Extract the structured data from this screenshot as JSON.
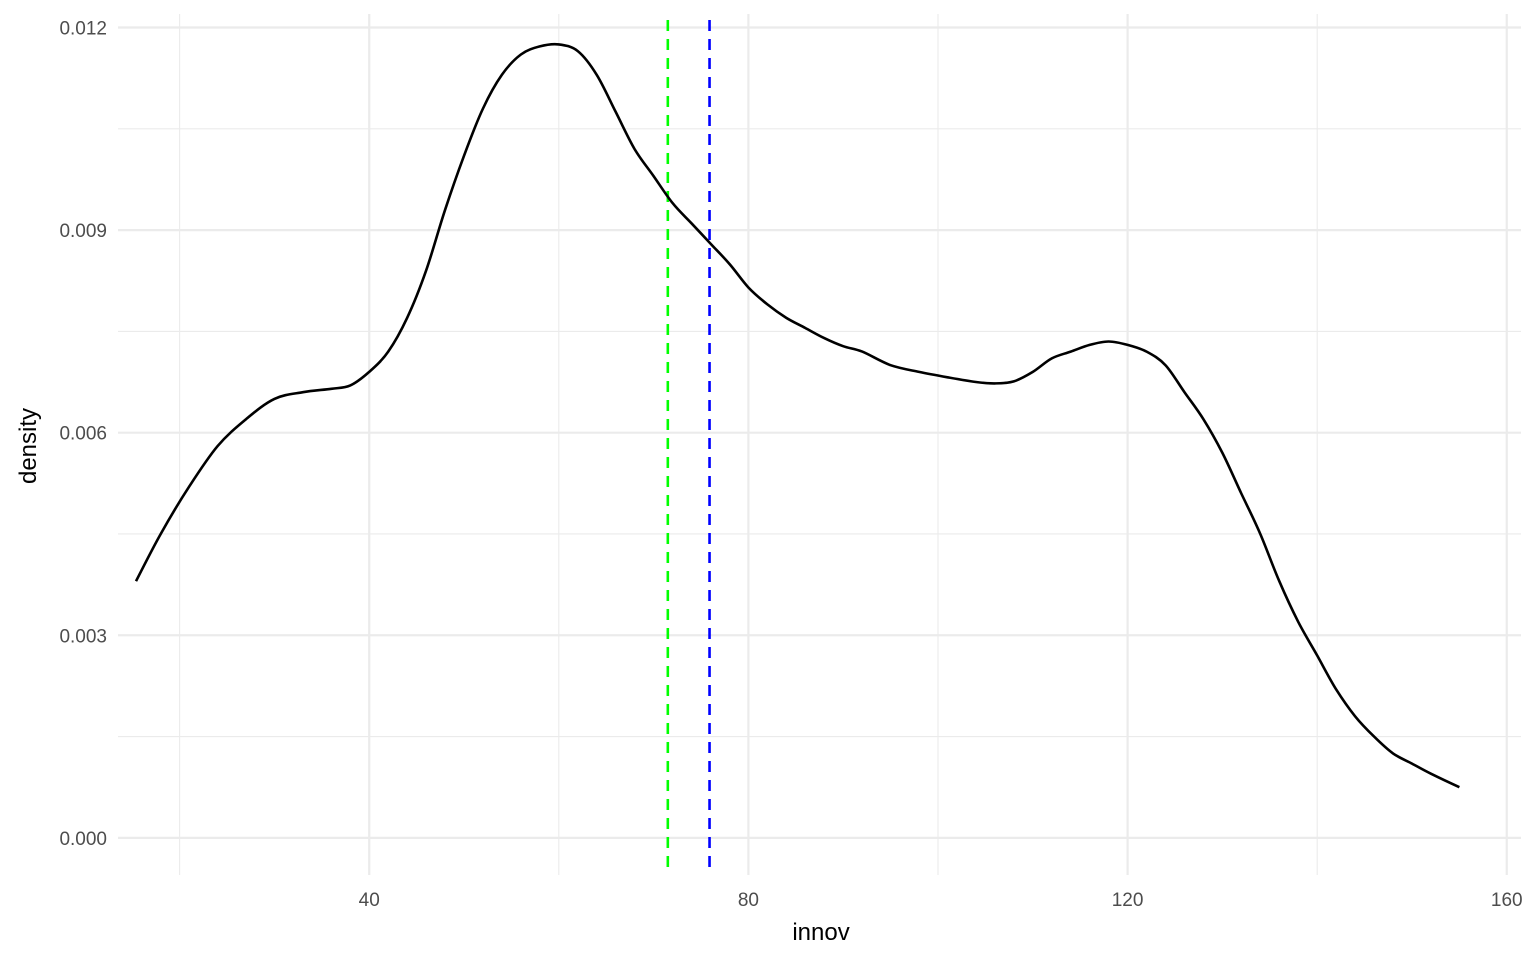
{
  "chart_data": {
    "type": "line",
    "title": "",
    "xlabel": "innov",
    "ylabel": "density",
    "xlim": [
      13.5,
      161.5
    ],
    "ylim": [
      -0.00055,
      0.0122
    ],
    "x_ticks": [
      {
        "value": 40,
        "label": "40"
      },
      {
        "value": 80,
        "label": "80"
      },
      {
        "value": 120,
        "label": "120"
      },
      {
        "value": 160,
        "label": "160"
      }
    ],
    "x_minor_ticks": [
      20,
      60,
      100,
      140
    ],
    "y_ticks": [
      {
        "value": 0.0,
        "label": "0.000"
      },
      {
        "value": 0.003,
        "label": "0.003"
      },
      {
        "value": 0.006,
        "label": "0.006"
      },
      {
        "value": 0.009,
        "label": "0.009"
      },
      {
        "value": 0.012,
        "label": "0.012"
      }
    ],
    "y_minor_ticks": [
      0.0015,
      0.0045,
      0.0075,
      0.0105
    ],
    "grid": true,
    "series": [
      {
        "color": "#000000",
        "x": [
          15.4,
          18,
          21,
          24,
          27,
          30,
          33,
          36,
          38,
          40,
          42,
          44,
          46,
          48,
          50,
          52,
          54,
          56,
          58,
          60,
          62,
          64,
          66,
          68,
          70,
          72,
          74,
          76,
          78,
          80,
          82,
          84,
          86,
          88,
          90,
          92,
          95,
          98,
          101,
          104,
          106,
          108,
          110,
          112,
          114,
          116,
          118,
          120,
          122,
          124,
          126,
          128,
          130,
          132,
          134,
          136,
          138,
          140,
          142,
          144,
          146,
          148,
          150,
          152,
          155
        ],
        "y": [
          0.0038,
          0.0045,
          0.0052,
          0.0058,
          0.0062,
          0.0065,
          0.0066,
          0.00665,
          0.0067,
          0.0069,
          0.0072,
          0.0077,
          0.0084,
          0.0093,
          0.0101,
          0.0108,
          0.0113,
          0.0116,
          0.01172,
          0.01175,
          0.01165,
          0.0113,
          0.01075,
          0.0102,
          0.0098,
          0.0094,
          0.0091,
          0.0088,
          0.0085,
          0.00815,
          0.0079,
          0.0077,
          0.00755,
          0.0074,
          0.00728,
          0.0072,
          0.007,
          0.0069,
          0.00682,
          0.00675,
          0.00673,
          0.00676,
          0.0069,
          0.0071,
          0.0072,
          0.0073,
          0.00735,
          0.0073,
          0.0072,
          0.007,
          0.0066,
          0.0062,
          0.0057,
          0.0051,
          0.0045,
          0.0038,
          0.0032,
          0.0027,
          0.0022,
          0.0018,
          0.0015,
          0.00125,
          0.0011,
          0.00095,
          0.00075
        ]
      }
    ],
    "vlines": [
      {
        "x": 71.5,
        "color": "#00ff00",
        "style": "dashed"
      },
      {
        "x": 75.9,
        "color": "#0000ff",
        "style": "dashed"
      }
    ]
  }
}
